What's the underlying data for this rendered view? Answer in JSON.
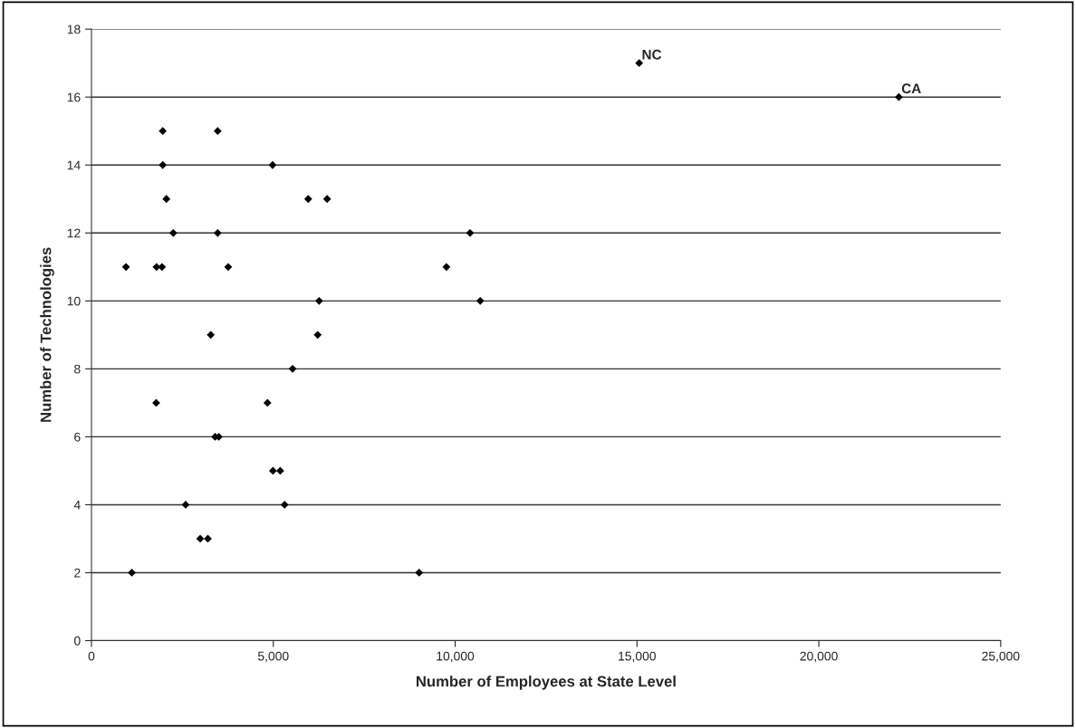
{
  "chart_data": {
    "type": "scatter",
    "xlabel": "Number of Employees at State Level",
    "ylabel": "Number of Technologies",
    "x": [
      1960,
      3470,
      1960,
      4980,
      2060,
      5960,
      6480,
      2250,
      3470,
      950,
      1790,
      1940,
      3760,
      6260,
      3280,
      6220,
      5530,
      1780,
      4840,
      3400,
      3500,
      4990,
      5190,
      2590,
      5310,
      2990,
      3200,
      1110,
      15060,
      22200,
      10410,
      9760,
      10690,
      9010
    ],
    "series": [
      {
        "color": "#000000",
        "values": [
          15,
          15,
          14,
          14,
          13,
          13,
          13,
          12,
          12,
          11,
          11,
          11,
          11,
          10,
          9,
          9,
          8,
          7,
          7,
          6,
          6,
          5,
          5,
          4,
          4,
          3,
          3,
          2,
          17,
          16,
          12,
          11,
          10,
          2
        ]
      }
    ],
    "annotations": [
      {
        "text": "NC",
        "x": 15060,
        "y": 17
      },
      {
        "text": "CA",
        "x": 22200,
        "y": 16
      }
    ],
    "xlim": [
      0,
      25000
    ],
    "xticks": [
      {
        "value": 0,
        "label": "0"
      },
      {
        "value": 5000,
        "label": "5,000"
      },
      {
        "value": 10000,
        "label": "10,000"
      },
      {
        "value": 15000,
        "label": "15,000"
      },
      {
        "value": 20000,
        "label": "20,000"
      },
      {
        "value": 25000,
        "label": "25,000"
      }
    ],
    "ylim": [
      0,
      18
    ],
    "yticks": [
      0,
      2,
      4,
      6,
      8,
      10,
      12,
      14,
      16,
      18
    ],
    "grid": "y",
    "marker": "diamond",
    "legend": false
  }
}
